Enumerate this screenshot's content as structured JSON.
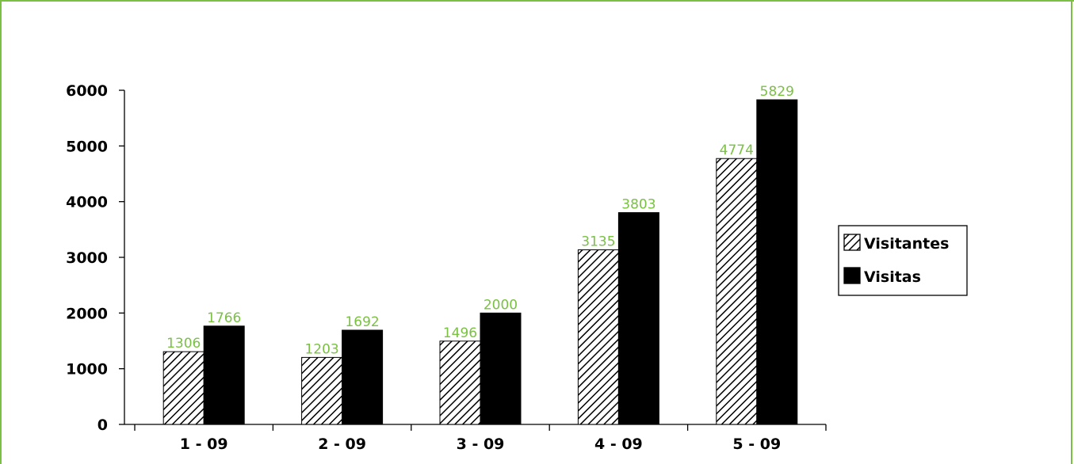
{
  "chart_data": {
    "type": "bar",
    "categories": [
      "1 - 09",
      "2 - 09",
      "3 -  09",
      "4 - 09",
      "5 -  09"
    ],
    "series": [
      {
        "name": "Visitantes",
        "values": [
          1306,
          1203,
          1496,
          3135,
          4774
        ],
        "fill": "hatch"
      },
      {
        "name": "Visitas",
        "values": [
          1766,
          1692,
          2000,
          3803,
          5829
        ],
        "fill": "solid"
      }
    ],
    "ylim": [
      0,
      6000
    ],
    "yticks": [
      0,
      1000,
      2000,
      3000,
      4000,
      5000,
      6000
    ],
    "grid": false,
    "legend_position": "right",
    "title": "",
    "xlabel": "",
    "ylabel": ""
  },
  "colors": {
    "frame": "#7ac143",
    "data_label": "#7ac143",
    "bar": "#000000"
  }
}
